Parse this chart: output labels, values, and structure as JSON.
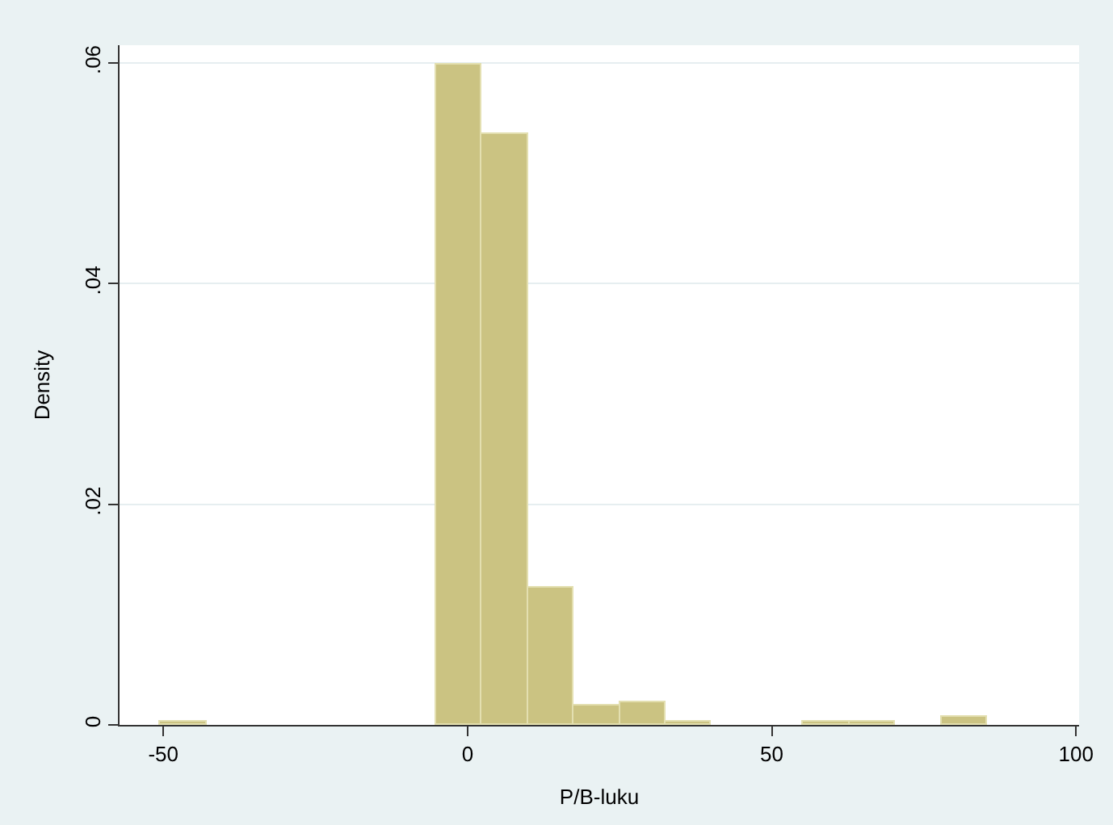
{
  "chart_data": {
    "type": "histogram",
    "xlabel": "P/B-luku",
    "ylabel": "Density",
    "bins": [
      -50.5,
      -42.95,
      -35.4,
      -27.85,
      -20.3,
      -12.75,
      -5.2,
      2.35,
      9.9,
      17.45,
      25.0,
      32.55,
      40.1,
      47.65,
      55.2,
      62.75,
      70.3,
      77.85,
      85.4
    ],
    "values": [
      0.0003,
      0,
      0,
      0,
      0,
      0,
      0.0598,
      0.0535,
      0.0124,
      0.0017,
      0.0021,
      0.0003,
      0,
      0,
      0.0003,
      0.0003,
      0,
      0.0008
    ],
    "color": "#cbc382",
    "xlim": [
      -57.2,
      100.5
    ],
    "xticks": [
      -50,
      0,
      50,
      100
    ],
    "ylim": [
      0,
      0.0616
    ],
    "yticks": [
      {
        "value": 0,
        "label": "0"
      },
      {
        "value": 0.02,
        "label": ".02"
      },
      {
        "value": 0.04,
        "label": ".04"
      },
      {
        "value": 0.06,
        "label": ".06"
      }
    ],
    "grid": "y",
    "legend": false
  }
}
